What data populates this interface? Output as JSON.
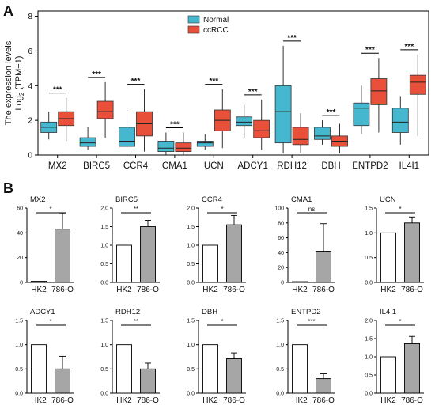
{
  "panels": {
    "a_label": "A",
    "b_label": "B"
  },
  "colors": {
    "normal": "#45b7cf",
    "ccrcc": "#e8503a",
    "hk2": "#ffffff",
    "c786": "#a6a6a6"
  },
  "chart_data": [
    {
      "type": "box",
      "panel": "A",
      "ylabel_main": "The expression levels",
      "ylabel_sub": "Log",
      "ylabel_sub_index": "2",
      "ylabel_sub_rest": " (TPM+1)",
      "ylim": [
        0,
        8.3
      ],
      "yticks": [
        0,
        2,
        4,
        6,
        8
      ],
      "legend": {
        "position": "top-center",
        "entries": [
          "Normal",
          "ccRCC"
        ]
      },
      "categories": [
        "MX2",
        "BIRC5",
        "CCR4",
        "CMA1",
        "UCN",
        "ADCY1",
        "RDH12",
        "DBH",
        "ENTPD2",
        "IL4I1"
      ],
      "significance": [
        "***",
        "***",
        "***",
        "***",
        "***",
        "***",
        "***",
        "***",
        "***",
        "***"
      ],
      "series": [
        {
          "name": "Normal",
          "boxes": [
            {
              "min": 0.9,
              "q1": 1.3,
              "median": 1.6,
              "q3": 1.9,
              "max": 2.5
            },
            {
              "min": 0.3,
              "q1": 0.5,
              "median": 0.7,
              "q3": 1.0,
              "max": 1.6
            },
            {
              "min": 0.1,
              "q1": 0.5,
              "median": 0.8,
              "q3": 1.6,
              "max": 2.6
            },
            {
              "min": 0.0,
              "q1": 0.2,
              "median": 0.4,
              "q3": 0.8,
              "max": 1.3
            },
            {
              "min": 0.3,
              "q1": 0.5,
              "median": 0.7,
              "q3": 0.8,
              "max": 1.2
            },
            {
              "min": 1.0,
              "q1": 1.7,
              "median": 1.9,
              "q3": 2.2,
              "max": 2.9
            },
            {
              "min": 0.1,
              "q1": 0.7,
              "median": 2.5,
              "q3": 4.0,
              "max": 6.3
            },
            {
              "min": 0.6,
              "q1": 0.9,
              "median": 1.1,
              "q3": 1.6,
              "max": 2.0
            },
            {
              "min": 1.2,
              "q1": 1.7,
              "median": 2.7,
              "q3": 3.0,
              "max": 4.0
            },
            {
              "min": 0.6,
              "q1": 1.3,
              "median": 1.9,
              "q3": 2.7,
              "max": 3.4
            }
          ]
        },
        {
          "name": "ccRCC",
          "boxes": [
            {
              "min": 0.8,
              "q1": 1.7,
              "median": 2.1,
              "q3": 2.5,
              "max": 3.3
            },
            {
              "min": 1.0,
              "q1": 2.1,
              "median": 2.5,
              "q3": 3.1,
              "max": 4.2
            },
            {
              "min": 0.2,
              "q1": 1.1,
              "median": 1.8,
              "q3": 2.5,
              "max": 3.8
            },
            {
              "min": 0.0,
              "q1": 0.2,
              "median": 0.4,
              "q3": 0.7,
              "max": 1.3
            },
            {
              "min": 0.4,
              "q1": 1.4,
              "median": 2.0,
              "q3": 2.6,
              "max": 3.8
            },
            {
              "min": 0.3,
              "q1": 1.0,
              "median": 1.4,
              "q3": 2.0,
              "max": 3.2
            },
            {
              "min": 0.1,
              "q1": 0.6,
              "median": 0.9,
              "q3": 1.6,
              "max": 2.4
            },
            {
              "min": 0.1,
              "q1": 0.5,
              "median": 0.8,
              "q3": 1.1,
              "max": 1.8
            },
            {
              "min": 1.3,
              "q1": 2.9,
              "median": 3.7,
              "q3": 4.4,
              "max": 5.6
            },
            {
              "min": 1.1,
              "q1": 3.5,
              "median": 4.2,
              "q3": 4.6,
              "max": 5.8
            }
          ]
        }
      ]
    },
    {
      "type": "bar",
      "panel": "B",
      "categories": [
        "HK2",
        "786-O"
      ],
      "subplots": [
        {
          "gene": "MX2",
          "values": [
            1,
            43
          ],
          "errors": [
            0,
            13
          ],
          "yticks": [
            0,
            20,
            40,
            60
          ],
          "ymax": 60,
          "yticklabels": [
            "0",
            "20",
            "40",
            "60"
          ],
          "sig": "*"
        },
        {
          "gene": "BIRC5",
          "values": [
            1.0,
            1.5
          ],
          "errors": [
            0,
            0.17
          ],
          "yticks": [
            0.0,
            0.5,
            1.0,
            1.5,
            2.0
          ],
          "ymax": 2.0,
          "yticklabels": [
            "0.0",
            "0.5",
            "1.0",
            "1.5",
            "2.0"
          ],
          "sig": "**"
        },
        {
          "gene": "CCR4",
          "values": [
            1.0,
            1.55
          ],
          "errors": [
            0,
            0.25
          ],
          "yticks": [
            0.0,
            0.5,
            1.0,
            1.5,
            2.0
          ],
          "ymax": 2.0,
          "yticklabels": [
            "0.0",
            "0.5",
            "1.0",
            "1.5",
            "2.0"
          ],
          "sig": "*"
        },
        {
          "gene": "CMA1",
          "values": [
            1,
            42
          ],
          "errors": [
            0,
            37
          ],
          "yticks": [
            0,
            20,
            40,
            60,
            80,
            100
          ],
          "ymax": 100,
          "yticklabels": [
            "0",
            "20",
            "40",
            "60",
            "80",
            "100"
          ],
          "sig": "ns"
        },
        {
          "gene": "UCN",
          "values": [
            1.0,
            1.2
          ],
          "errors": [
            0,
            0.12
          ],
          "yticks": [
            0.0,
            0.5,
            1.0,
            1.5
          ],
          "ymax": 1.5,
          "yticklabels": [
            "0.0",
            "0.5",
            "1.0",
            "1.5"
          ],
          "sig": "*"
        },
        {
          "gene": "ADCY1",
          "values": [
            1.0,
            0.5
          ],
          "errors": [
            0,
            0.26
          ],
          "yticks": [
            0.0,
            0.5,
            1.0,
            1.5
          ],
          "ymax": 1.5,
          "yticklabels": [
            "0.0",
            "0.5",
            "1.0",
            "1.5"
          ],
          "sig": "*"
        },
        {
          "gene": "RDH12",
          "values": [
            1.0,
            0.5
          ],
          "errors": [
            0,
            0.12
          ],
          "yticks": [
            0.0,
            0.5,
            1.0,
            1.5
          ],
          "ymax": 1.5,
          "yticklabels": [
            "0.0",
            "0.5",
            "1.0",
            "1.5"
          ],
          "sig": "**"
        },
        {
          "gene": "DBH",
          "values": [
            1.0,
            0.71
          ],
          "errors": [
            0,
            0.12
          ],
          "yticks": [
            0.0,
            0.5,
            1.0,
            1.5
          ],
          "ymax": 1.5,
          "yticklabels": [
            "0.0",
            "0.5",
            "1.0",
            "1.5"
          ],
          "sig": "*"
        },
        {
          "gene": "ENTPD2",
          "values": [
            1.0,
            0.3
          ],
          "errors": [
            0,
            0.1
          ],
          "yticks": [
            0.0,
            0.5,
            1.0,
            1.5
          ],
          "ymax": 1.5,
          "yticklabels": [
            "0.0",
            "0.5",
            "1.0",
            "1.5"
          ],
          "sig": "***"
        },
        {
          "gene": "IL4I1",
          "values": [
            1.0,
            1.36
          ],
          "errors": [
            0,
            0.2
          ],
          "yticks": [
            0.0,
            0.5,
            1.0,
            1.5,
            2.0
          ],
          "ymax": 2.0,
          "yticklabels": [
            "0.0",
            "0.5",
            "1.0",
            "1.5",
            "2.0"
          ],
          "sig": "*"
        }
      ]
    }
  ]
}
